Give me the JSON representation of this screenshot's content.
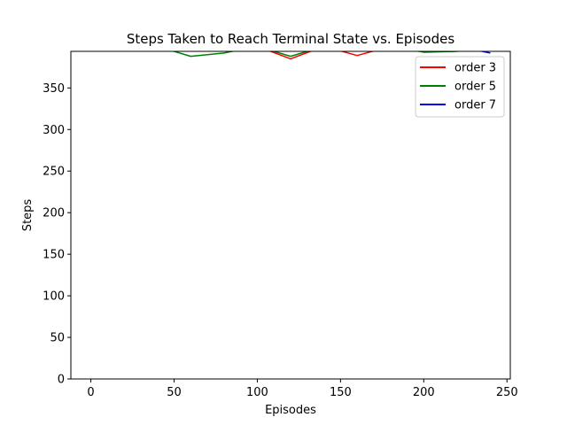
{
  "chart_data": {
    "type": "line",
    "title": "Steps Taken to Reach Terminal State vs. Episodes",
    "xlabel": "Episodes",
    "ylabel": "Steps",
    "xlim": [
      -12,
      252
    ],
    "ylim": [
      0,
      394
    ],
    "xticks": [
      0,
      50,
      100,
      150,
      200,
      250
    ],
    "yticks": [
      0,
      50,
      100,
      150,
      200,
      250,
      300,
      350
    ],
    "grid": false,
    "legend_position": "top-right",
    "series": [
      {
        "name": "order 3",
        "color": "#ff0000",
        "x": [
          0,
          20,
          40,
          60,
          80,
          100,
          120,
          140,
          160,
          180,
          200,
          220,
          240
        ],
        "y": [
          400,
          400,
          400,
          400,
          400,
          400,
          385,
          400,
          389,
          400,
          400,
          400,
          400
        ]
      },
      {
        "name": "order 5",
        "color": "#008000",
        "x": [
          0,
          20,
          40,
          60,
          80,
          100,
          120,
          140,
          160,
          180,
          200,
          220,
          240
        ],
        "y": [
          400,
          400,
          400,
          388,
          392,
          400,
          388,
          400,
          400,
          400,
          393,
          394,
          400
        ]
      },
      {
        "name": "order 7",
        "color": "#0000ff",
        "x": [
          0,
          20,
          40,
          60,
          80,
          100,
          120,
          140,
          160,
          180,
          200,
          220,
          240
        ],
        "y": [
          400,
          400,
          400,
          400,
          400,
          400,
          400,
          400,
          400,
          400,
          400,
          400,
          392
        ]
      }
    ]
  }
}
